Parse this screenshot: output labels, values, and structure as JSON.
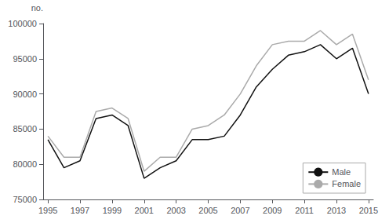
{
  "chart_data": {
    "type": "line",
    "x": [
      1995,
      1996,
      1997,
      1998,
      1999,
      2000,
      2001,
      2002,
      2003,
      2004,
      2005,
      2006,
      2007,
      2008,
      2009,
      2010,
      2011,
      2012,
      2013,
      2014,
      2015
    ],
    "series": [
      {
        "name": "Male",
        "color": "#111111",
        "values": [
          83500,
          79500,
          80500,
          86500,
          87000,
          85500,
          78000,
          79500,
          80500,
          83500,
          83500,
          84000,
          87000,
          91000,
          93500,
          95500,
          96000,
          97000,
          95000,
          96500,
          90000
        ]
      },
      {
        "name": "Female",
        "color": "#aaaaaa",
        "values": [
          84000,
          81000,
          81000,
          87500,
          88000,
          86500,
          79000,
          81000,
          81000,
          85000,
          85500,
          87000,
          90000,
          94000,
          97000,
          97500,
          97500,
          99000,
          97000,
          98500,
          92000
        ]
      }
    ],
    "ylabel": "no.",
    "xlim": [
      1994.7,
      2015.3
    ],
    "xticks": [
      1995,
      1997,
      1999,
      2001,
      2003,
      2005,
      2007,
      2009,
      2011,
      2013,
      2015
    ],
    "ylim": [
      75000,
      100000
    ],
    "yticks": [
      75000,
      80000,
      85000,
      90000,
      95000,
      100000
    ],
    "grid": false,
    "legend": "lower right"
  }
}
